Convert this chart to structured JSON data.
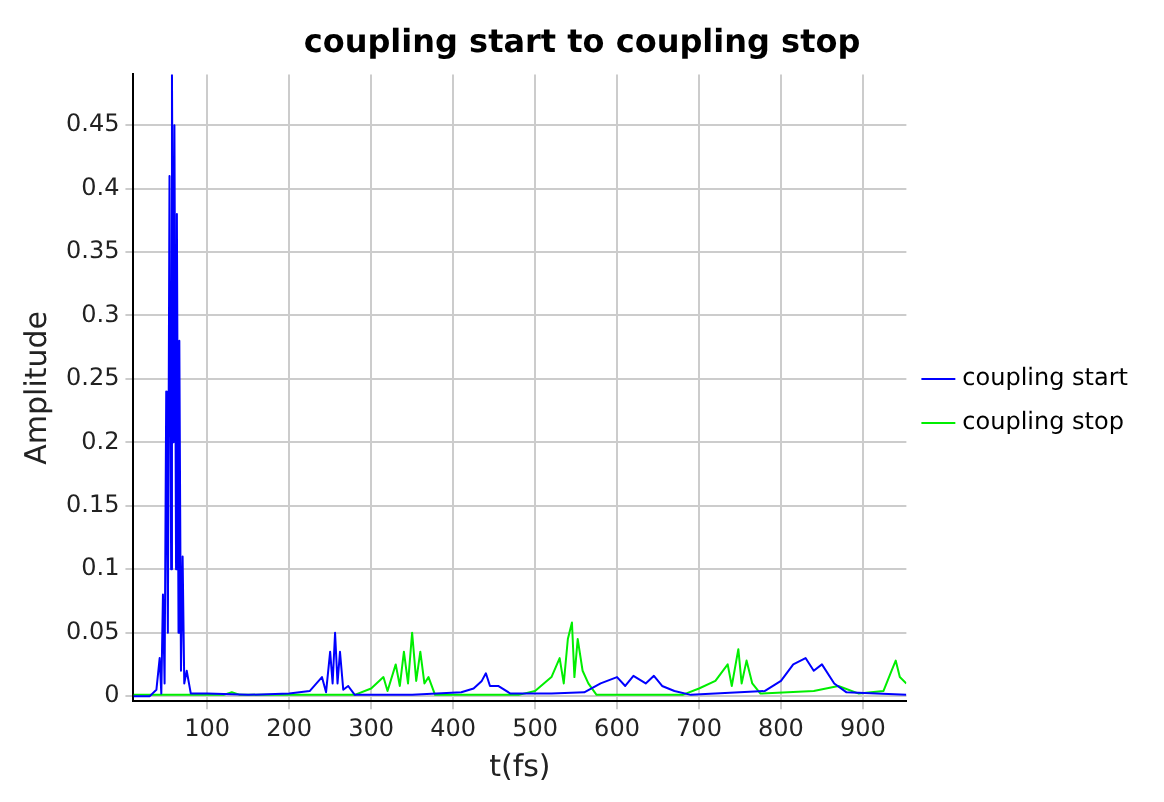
{
  "chart_data": {
    "type": "line",
    "title": "coupling start to coupling stop",
    "xlabel": "t(fs)",
    "ylabel": "Amplitude",
    "xlim": [
      10,
      953
    ],
    "ylim": [
      -0.004,
      0.49
    ],
    "xticks": [
      100,
      200,
      300,
      400,
      500,
      600,
      700,
      800,
      900
    ],
    "yticks": [
      0,
      0.05,
      0.1,
      0.15,
      0.2,
      0.25,
      0.3,
      0.35,
      0.4,
      0.45
    ],
    "grid": true,
    "legend": "right",
    "marker": "none",
    "line_style": "solid",
    "series": [
      {
        "name": "coupling start",
        "color": "#0000ff",
        "x": [
          10,
          30,
          38,
          42,
          44,
          46,
          48,
          50,
          52,
          54,
          56,
          57,
          59,
          60,
          62,
          63,
          65,
          66,
          68,
          70,
          72,
          75,
          80,
          100,
          150,
          200,
          225,
          240,
          245,
          250,
          253,
          256,
          259,
          262,
          266,
          272,
          280,
          350,
          410,
          425,
          435,
          440,
          445,
          455,
          470,
          520,
          560,
          580,
          600,
          610,
          620,
          635,
          645,
          655,
          670,
          690,
          780,
          800,
          815,
          830,
          840,
          850,
          865,
          880,
          953
        ],
        "values": [
          0,
          0,
          0.005,
          0.03,
          0.002,
          0.08,
          0.01,
          0.24,
          0.05,
          0.41,
          0.1,
          0.49,
          0.2,
          0.45,
          0.1,
          0.38,
          0.05,
          0.28,
          0.02,
          0.11,
          0.01,
          0.02,
          0.002,
          0.002,
          0.001,
          0.002,
          0.004,
          0.015,
          0.003,
          0.035,
          0.01,
          0.05,
          0.01,
          0.035,
          0.005,
          0.008,
          0.001,
          0.001,
          0.003,
          0.006,
          0.012,
          0.018,
          0.008,
          0.008,
          0.002,
          0.002,
          0.003,
          0.01,
          0.015,
          0.008,
          0.016,
          0.01,
          0.016,
          0.008,
          0.004,
          0.001,
          0.004,
          0.012,
          0.025,
          0.03,
          0.02,
          0.025,
          0.01,
          0.003,
          0.001
        ]
      },
      {
        "name": "coupling stop",
        "color": "#00ee00",
        "x": [
          10,
          120,
          130,
          140,
          280,
          300,
          315,
          320,
          330,
          335,
          340,
          345,
          350,
          355,
          360,
          365,
          370,
          378,
          480,
          500,
          520,
          530,
          535,
          540,
          545,
          548,
          552,
          558,
          565,
          575,
          680,
          700,
          720,
          735,
          740,
          748,
          752,
          758,
          765,
          775,
          840,
          870,
          895,
          925,
          935,
          940,
          945,
          953
        ],
        "values": [
          0.001,
          0.001,
          0.003,
          0.001,
          0.001,
          0.006,
          0.015,
          0.004,
          0.025,
          0.008,
          0.035,
          0.01,
          0.05,
          0.012,
          0.035,
          0.01,
          0.015,
          0.001,
          0.001,
          0.004,
          0.015,
          0.03,
          0.01,
          0.045,
          0.058,
          0.015,
          0.045,
          0.02,
          0.01,
          0.001,
          0.001,
          0.006,
          0.012,
          0.025,
          0.008,
          0.037,
          0.01,
          0.028,
          0.01,
          0.002,
          0.004,
          0.008,
          0.002,
          0.004,
          0.02,
          0.028,
          0.015,
          0.01
        ]
      }
    ]
  }
}
